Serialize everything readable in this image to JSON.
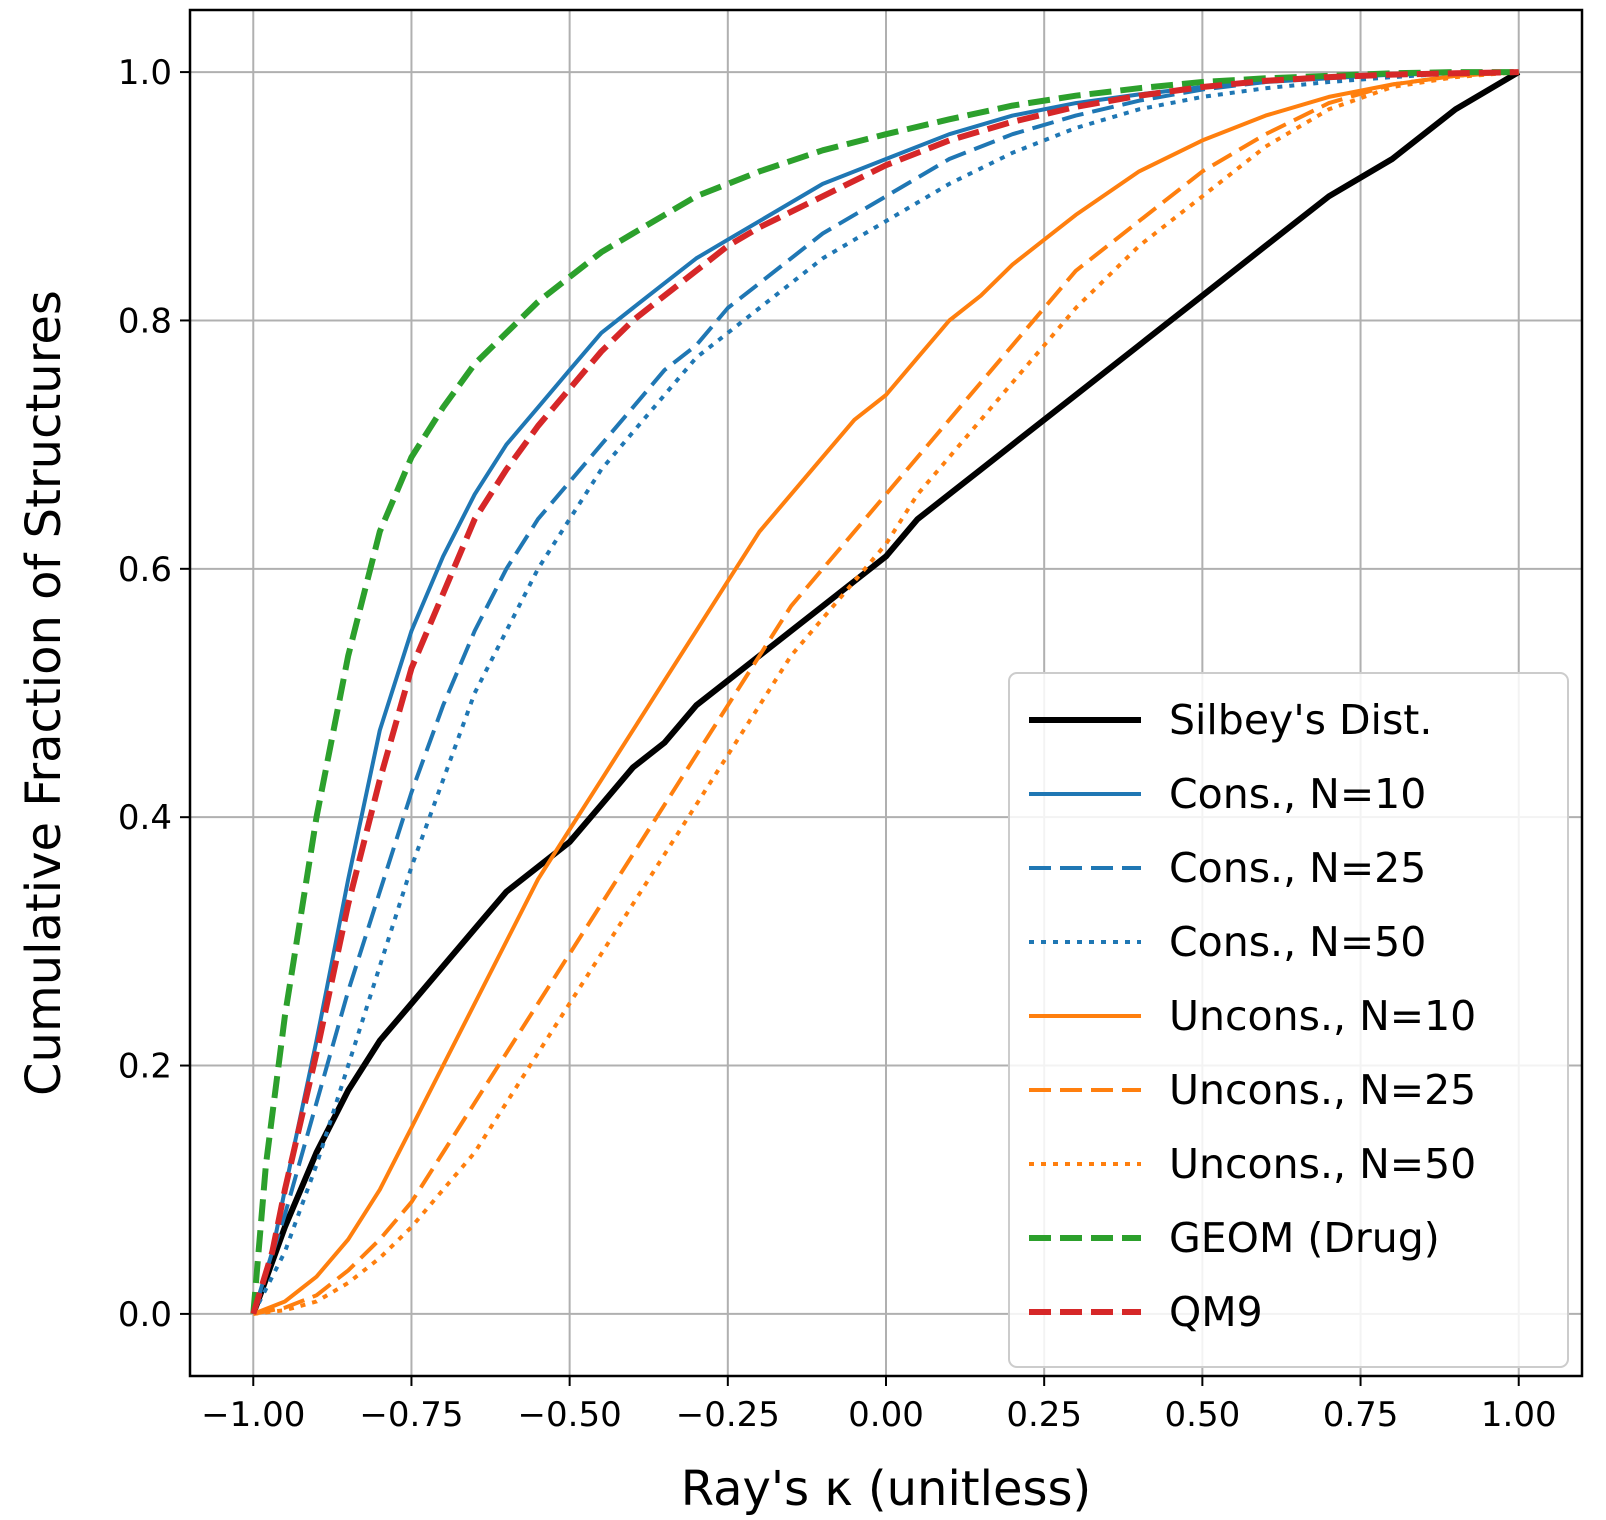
{
  "chart_data": {
    "type": "line",
    "title": "",
    "xlabel": "Ray's κ (unitless)",
    "ylabel": "Cumulative Fraction of Structures",
    "xlim": [
      -1.1,
      1.1
    ],
    "ylim": [
      -0.05,
      1.05
    ],
    "xticks": [
      -1.0,
      -0.75,
      -0.5,
      -0.25,
      0.0,
      0.25,
      0.5,
      0.75,
      1.0
    ],
    "xtick_labels": [
      "−1.00",
      "−0.75",
      "−0.50",
      "−0.25",
      "0.00",
      "0.25",
      "0.50",
      "0.75",
      "1.00"
    ],
    "yticks": [
      0.0,
      0.2,
      0.4,
      0.6,
      0.8,
      1.0
    ],
    "ytick_labels": [
      "0.0",
      "0.2",
      "0.4",
      "0.6",
      "0.8",
      "1.0"
    ],
    "grid": true,
    "legend_position": "lower-right",
    "series": [
      {
        "name": "Silbey's Dist.",
        "color": "#000000",
        "style": "solid",
        "weight": "bold",
        "x": [
          -1.0,
          -0.95,
          -0.9,
          -0.85,
          -0.8,
          -0.75,
          -0.7,
          -0.65,
          -0.6,
          -0.55,
          -0.5,
          -0.45,
          -0.4,
          -0.35,
          -0.3,
          -0.25,
          -0.2,
          -0.15,
          -0.1,
          -0.05,
          0.0,
          0.05,
          0.1,
          0.15,
          0.2,
          0.25,
          0.3,
          0.4,
          0.5,
          0.6,
          0.7,
          0.8,
          0.9,
          1.0
        ],
        "y": [
          0.0,
          0.07,
          0.13,
          0.18,
          0.22,
          0.25,
          0.28,
          0.31,
          0.34,
          0.36,
          0.38,
          0.41,
          0.44,
          0.46,
          0.49,
          0.51,
          0.53,
          0.55,
          0.57,
          0.59,
          0.61,
          0.64,
          0.66,
          0.68,
          0.7,
          0.72,
          0.74,
          0.78,
          0.82,
          0.86,
          0.9,
          0.93,
          0.97,
          1.0
        ]
      },
      {
        "name": "Cons., N=10",
        "color": "#1f77b4",
        "style": "solid",
        "weight": "normal",
        "x": [
          -1.0,
          -0.97,
          -0.95,
          -0.9,
          -0.85,
          -0.8,
          -0.75,
          -0.7,
          -0.65,
          -0.6,
          -0.55,
          -0.5,
          -0.45,
          -0.4,
          -0.35,
          -0.3,
          -0.25,
          -0.2,
          -0.1,
          0.0,
          0.1,
          0.2,
          0.3,
          0.4,
          0.5,
          0.6,
          0.7,
          0.8,
          0.9,
          1.0
        ],
        "y": [
          0.0,
          0.05,
          0.1,
          0.22,
          0.35,
          0.47,
          0.55,
          0.61,
          0.66,
          0.7,
          0.73,
          0.76,
          0.79,
          0.81,
          0.83,
          0.85,
          0.865,
          0.88,
          0.91,
          0.93,
          0.95,
          0.965,
          0.975,
          0.982,
          0.988,
          0.992,
          0.995,
          0.998,
          0.999,
          1.0
        ]
      },
      {
        "name": "Cons., N=25",
        "color": "#1f77b4",
        "style": "dashed",
        "weight": "normal",
        "x": [
          -1.0,
          -0.95,
          -0.9,
          -0.85,
          -0.8,
          -0.75,
          -0.7,
          -0.65,
          -0.6,
          -0.55,
          -0.5,
          -0.45,
          -0.4,
          -0.35,
          -0.3,
          -0.25,
          -0.2,
          -0.1,
          0.0,
          0.1,
          0.2,
          0.3,
          0.4,
          0.5,
          0.6,
          0.7,
          0.8,
          0.9,
          1.0
        ],
        "y": [
          0.0,
          0.08,
          0.17,
          0.26,
          0.34,
          0.42,
          0.49,
          0.55,
          0.6,
          0.64,
          0.67,
          0.7,
          0.73,
          0.76,
          0.78,
          0.81,
          0.83,
          0.87,
          0.9,
          0.93,
          0.95,
          0.965,
          0.977,
          0.986,
          0.992,
          0.996,
          0.998,
          0.999,
          1.0
        ]
      },
      {
        "name": "Cons., N=50",
        "color": "#1f77b4",
        "style": "dotted",
        "weight": "normal",
        "x": [
          -1.0,
          -0.95,
          -0.9,
          -0.85,
          -0.8,
          -0.75,
          -0.7,
          -0.65,
          -0.6,
          -0.55,
          -0.5,
          -0.45,
          -0.4,
          -0.35,
          -0.3,
          -0.25,
          -0.2,
          -0.1,
          0.0,
          0.1,
          0.2,
          0.3,
          0.4,
          0.5,
          0.6,
          0.7,
          0.8,
          0.9,
          1.0
        ],
        "y": [
          0.0,
          0.05,
          0.12,
          0.2,
          0.28,
          0.36,
          0.43,
          0.5,
          0.55,
          0.6,
          0.64,
          0.68,
          0.71,
          0.74,
          0.77,
          0.79,
          0.81,
          0.85,
          0.88,
          0.91,
          0.935,
          0.955,
          0.97,
          0.98,
          0.987,
          0.992,
          0.996,
          0.999,
          1.0
        ]
      },
      {
        "name": "Uncons., N=10",
        "color": "#ff7f0e",
        "style": "solid",
        "weight": "normal",
        "x": [
          -1.0,
          -0.95,
          -0.9,
          -0.85,
          -0.8,
          -0.75,
          -0.7,
          -0.65,
          -0.6,
          -0.55,
          -0.5,
          -0.45,
          -0.4,
          -0.35,
          -0.3,
          -0.25,
          -0.2,
          -0.15,
          -0.1,
          -0.05,
          0.0,
          0.05,
          0.1,
          0.15,
          0.2,
          0.25,
          0.3,
          0.4,
          0.5,
          0.6,
          0.7,
          0.8,
          0.9,
          1.0
        ],
        "y": [
          0.0,
          0.01,
          0.03,
          0.06,
          0.1,
          0.15,
          0.2,
          0.25,
          0.3,
          0.35,
          0.39,
          0.43,
          0.47,
          0.51,
          0.55,
          0.59,
          0.63,
          0.66,
          0.69,
          0.72,
          0.74,
          0.77,
          0.8,
          0.82,
          0.845,
          0.865,
          0.885,
          0.92,
          0.945,
          0.965,
          0.98,
          0.99,
          0.997,
          1.0
        ]
      },
      {
        "name": "Uncons., N=25",
        "color": "#ff7f0e",
        "style": "dashed",
        "weight": "normal",
        "x": [
          -1.0,
          -0.95,
          -0.9,
          -0.85,
          -0.8,
          -0.75,
          -0.7,
          -0.65,
          -0.6,
          -0.55,
          -0.5,
          -0.45,
          -0.4,
          -0.35,
          -0.3,
          -0.25,
          -0.2,
          -0.15,
          -0.1,
          -0.05,
          0.0,
          0.05,
          0.1,
          0.15,
          0.2,
          0.25,
          0.3,
          0.4,
          0.5,
          0.6,
          0.7,
          0.8,
          0.9,
          1.0
        ],
        "y": [
          0.0,
          0.005,
          0.015,
          0.035,
          0.06,
          0.09,
          0.13,
          0.17,
          0.21,
          0.25,
          0.29,
          0.33,
          0.37,
          0.41,
          0.45,
          0.49,
          0.53,
          0.57,
          0.6,
          0.63,
          0.66,
          0.69,
          0.72,
          0.75,
          0.78,
          0.81,
          0.84,
          0.88,
          0.92,
          0.95,
          0.975,
          0.99,
          0.997,
          1.0
        ]
      },
      {
        "name": "Uncons., N=50",
        "color": "#ff7f0e",
        "style": "dotted",
        "weight": "normal",
        "x": [
          -1.0,
          -0.95,
          -0.9,
          -0.85,
          -0.8,
          -0.75,
          -0.7,
          -0.65,
          -0.6,
          -0.55,
          -0.5,
          -0.45,
          -0.4,
          -0.35,
          -0.3,
          -0.25,
          -0.2,
          -0.15,
          -0.1,
          -0.05,
          0.0,
          0.05,
          0.1,
          0.15,
          0.2,
          0.25,
          0.3,
          0.4,
          0.5,
          0.6,
          0.7,
          0.8,
          0.9,
          1.0
        ],
        "y": [
          0.0,
          0.003,
          0.01,
          0.025,
          0.045,
          0.07,
          0.1,
          0.13,
          0.17,
          0.21,
          0.25,
          0.29,
          0.33,
          0.37,
          0.41,
          0.45,
          0.49,
          0.53,
          0.56,
          0.59,
          0.62,
          0.66,
          0.69,
          0.72,
          0.75,
          0.78,
          0.81,
          0.86,
          0.9,
          0.94,
          0.97,
          0.988,
          0.996,
          1.0
        ]
      },
      {
        "name": "GEOM (Drug)",
        "color": "#2ca02c",
        "style": "dashed",
        "weight": "bold",
        "x": [
          -1.0,
          -0.98,
          -0.95,
          -0.9,
          -0.85,
          -0.8,
          -0.75,
          -0.7,
          -0.65,
          -0.6,
          -0.55,
          -0.5,
          -0.45,
          -0.4,
          -0.35,
          -0.3,
          -0.25,
          -0.2,
          -0.1,
          0.0,
          0.1,
          0.2,
          0.3,
          0.4,
          0.5,
          0.6,
          0.7,
          0.8,
          0.9,
          1.0
        ],
        "y": [
          0.0,
          0.12,
          0.24,
          0.4,
          0.53,
          0.63,
          0.69,
          0.73,
          0.765,
          0.79,
          0.815,
          0.835,
          0.855,
          0.87,
          0.885,
          0.9,
          0.91,
          0.92,
          0.937,
          0.95,
          0.962,
          0.973,
          0.981,
          0.987,
          0.992,
          0.995,
          0.997,
          0.999,
          1.0,
          1.0
        ]
      },
      {
        "name": "QM9",
        "color": "#d62728",
        "style": "dashed",
        "weight": "bold",
        "x": [
          -1.0,
          -0.97,
          -0.95,
          -0.9,
          -0.85,
          -0.8,
          -0.75,
          -0.7,
          -0.65,
          -0.6,
          -0.55,
          -0.5,
          -0.45,
          -0.4,
          -0.35,
          -0.3,
          -0.25,
          -0.2,
          -0.1,
          0.0,
          0.1,
          0.2,
          0.3,
          0.4,
          0.5,
          0.6,
          0.7,
          0.8,
          0.9,
          1.0
        ],
        "y": [
          0.0,
          0.05,
          0.1,
          0.21,
          0.33,
          0.43,
          0.52,
          0.58,
          0.64,
          0.68,
          0.715,
          0.745,
          0.775,
          0.8,
          0.82,
          0.84,
          0.86,
          0.875,
          0.9,
          0.925,
          0.945,
          0.96,
          0.972,
          0.981,
          0.988,
          0.993,
          0.996,
          0.998,
          0.999,
          1.0
        ]
      }
    ]
  }
}
